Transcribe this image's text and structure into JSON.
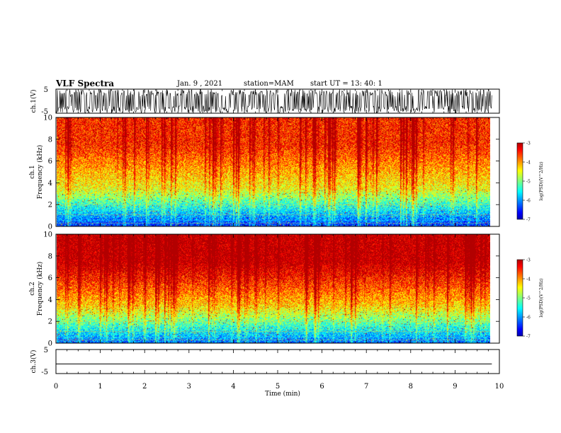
{
  "header": {
    "title": "VLF Spectra",
    "date": "Jan. 9 , 2021",
    "station": "station=MAM",
    "start": "start UT = 13: 40: 1"
  },
  "chart_data": [
    {
      "type": "line",
      "panel": "ch.1 waveform",
      "ylabel": "ch.1(V)",
      "ylim": [
        -5,
        5
      ],
      "yticks": [
        "5",
        "-5"
      ],
      "signal": "dense spiky waveform spanning full range, ends near 9.8 min"
    },
    {
      "type": "heatmap",
      "panel": "ch.1 spectrogram",
      "ylabel": "ch.1 Frequency (kHz)",
      "ylim": [
        0,
        10
      ],
      "yticks": [
        0,
        2,
        4,
        6,
        8,
        10
      ],
      "colorbar": {
        "label": "log(PSD)(V^2/Hz)",
        "range": [
          -7,
          -3
        ],
        "ticks": [
          "-3",
          "-4",
          "-5",
          "-6",
          "-7"
        ]
      },
      "description_levels": {
        "high_freq_band": -3.5,
        "mid": -4.5,
        "low_freq": -6.5
      }
    },
    {
      "type": "heatmap",
      "panel": "ch.2 spectrogram",
      "ylabel": "ch.2 Frequency (kHz)",
      "ylim": [
        0,
        10
      ],
      "yticks": [
        0,
        2,
        4,
        6,
        8,
        10
      ],
      "colorbar": {
        "label": "log(PSD)(V^2/Hz)",
        "range": [
          -7,
          -3
        ],
        "ticks": [
          "-3",
          "-4",
          "-5",
          "-6",
          "-7"
        ]
      },
      "description_levels": {
        "high_freq_band": -3.2,
        "mid": -4.5,
        "low_freq": -6.5
      }
    },
    {
      "type": "line",
      "panel": "ch.3 waveform",
      "ylabel": "ch.3(V)",
      "ylim": [
        -5,
        5
      ],
      "yticks": [
        "5",
        "-5"
      ],
      "constant_value": -1
    }
  ],
  "xaxis": {
    "label": "Time (min)",
    "range": [
      0,
      10
    ],
    "ticks": [
      "0",
      "1",
      "2",
      "3",
      "4",
      "5",
      "6",
      "7",
      "8",
      "9",
      "10"
    ],
    "data_end": 9.83
  }
}
